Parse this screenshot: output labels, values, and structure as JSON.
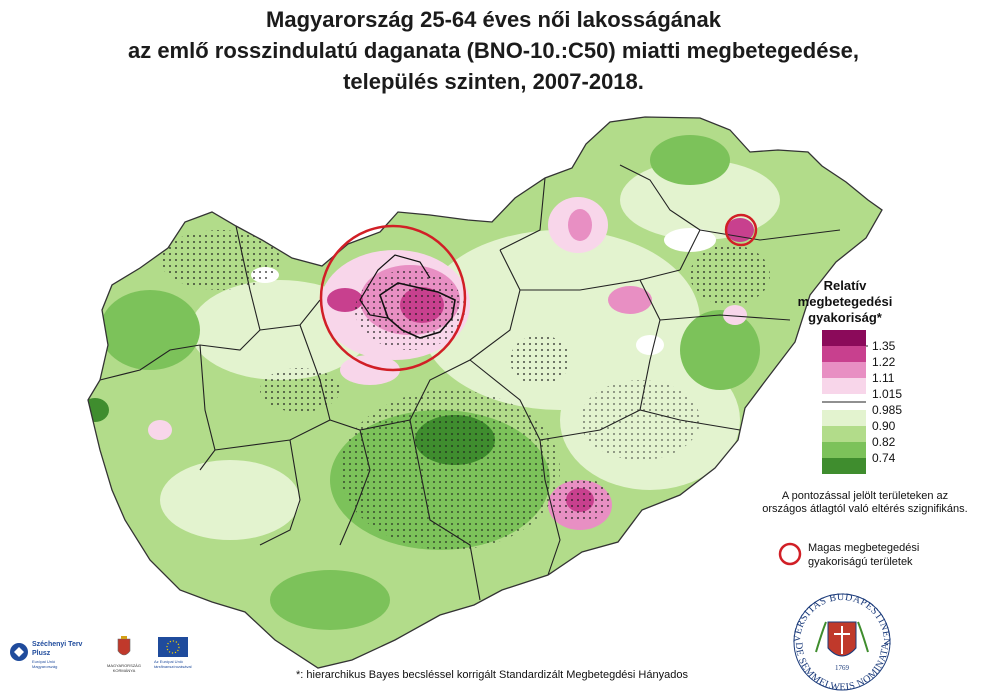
{
  "title": {
    "line1": "Magyarország 25-64 éves női lakosságának",
    "line2": "az emlő rosszindulatú daganata (BNO-10.:C50) miatti megbetegedése,",
    "line3": "település szinten, 2007-2018."
  },
  "legend": {
    "title_line1": "Relatív",
    "title_line2": "megbetegedési",
    "title_line3": "gyakoriság*",
    "labels": [
      "1.35",
      "1.22",
      "1.11",
      "1.015",
      "0.985",
      "0.90",
      "0.82",
      "0.74"
    ],
    "colors": [
      "#8b0a5a",
      "#c8408e",
      "#e88fc3",
      "#f8d6ea",
      "#ffffff",
      "#e3f3cf",
      "#b2dc8a",
      "#7cc25a",
      "#3f8d2e"
    ],
    "note": "A pontozással jelölt területeken az országos átlagtól való eltérés szignifikáns.",
    "circle_label": "Magas megbetegedési gyakoriságú területek",
    "circle_color": "#d11f26"
  },
  "footnote": "*: hierarchikus Bayes becsléssel korrigált Standardizált Megbetegdési Hányados",
  "logos": {
    "szechenyi_line1": "Széchenyi Terv",
    "szechenyi_line2": "Plusz",
    "szechenyi_sub": "Európai Unió Magyarország",
    "kormany": "MAGYARORSZÁG KORMÁNYA",
    "eu": "Az Európai Unió társfinanszírozásával",
    "seal_top": "UNIVERSITAS BUDAPESTINENSIS",
    "seal_bottom": "DE SEMMELWEIS NOMINATA",
    "seal_year": "1769"
  }
}
